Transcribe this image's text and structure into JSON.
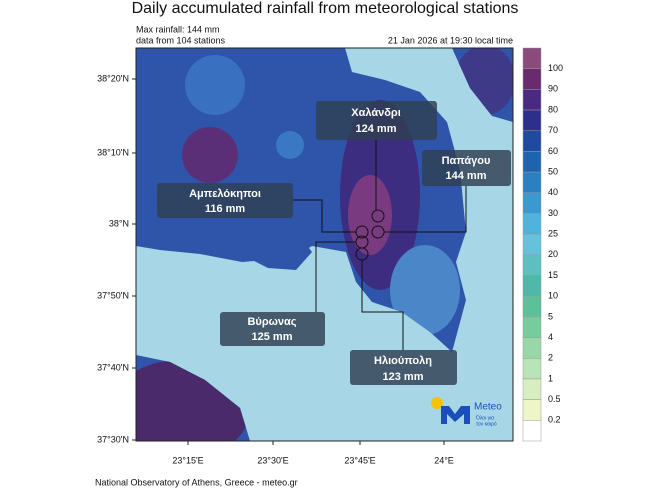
{
  "title": "Daily accumulated rainfall from meteorological stations",
  "info": {
    "max": "Max rainfall: 144 mm",
    "stations": "data from 104 stations",
    "time": "21 Jan 2026 at 19:30 local time"
  },
  "map": {
    "lat_labels": [
      "38°20'N",
      "38°10'N",
      "38°N",
      "37°50'N",
      "37°40'N",
      "37°30'N"
    ],
    "lon_labels": [
      "23°15'E",
      "23°30'E",
      "23°45'E",
      "24°E"
    ],
    "callouts": [
      {
        "name": "Χαλάνδρι",
        "value": "124 mm"
      },
      {
        "name": "Παπάγου",
        "value": "144 mm"
      },
      {
        "name": "Αμπελόκηποι",
        "value": "116 mm"
      },
      {
        "name": "Βύρωνας",
        "value": "125 mm"
      },
      {
        "name": "Ηλιούπολη",
        "value": "123 mm"
      }
    ],
    "colorbar": [
      "100",
      "90",
      "80",
      "70",
      "60",
      "50",
      "40",
      "30",
      "25",
      "20",
      "15",
      "10",
      "5",
      "4",
      "2",
      "1",
      "0.5",
      "0.2"
    ]
  },
  "logo": {
    "name": "Meteo",
    "tagline_1": "Όλοι για",
    "tagline_2": "τον καιρό"
  },
  "footer": "National Observatory of Athens, Greece - meteo.gr"
}
